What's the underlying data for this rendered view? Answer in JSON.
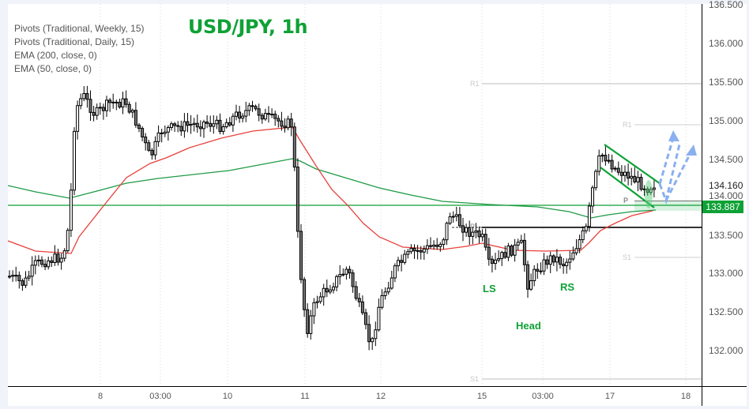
{
  "chart": {
    "title": "USD/JPY, 1h",
    "legend": [
      "Pivots (Traditional, Weekly, 15)",
      "Pivots (Traditional, Daily, 15)",
      "EMA (200, close, 0)",
      "EMA (50, close, 0)"
    ],
    "price_axis": {
      "ticks": [
        "136.500",
        "136.000",
        "135.500",
        "135.000",
        "134.500",
        "134.000",
        "133.500",
        "133.000",
        "132.500",
        "132.000"
      ],
      "last_price": "134.160",
      "badge_price": "133.887",
      "badge_color": "#0ea135"
    },
    "time_axis": {
      "ticks": [
        "8",
        "03:00",
        "10",
        "11",
        "12",
        "15",
        "03:00",
        "17",
        "18"
      ]
    },
    "pivot_labels": {
      "weekly_r1": "R1",
      "weekly_p": "P",
      "weekly_s1": "S1",
      "daily_r1": "R1",
      "daily_p": "P",
      "daily_s1": "S1"
    },
    "annotations": {
      "left_shoulder": "LS",
      "head": "Head",
      "right_shoulder": "RS"
    },
    "colors": {
      "ema50": "#e8413b",
      "ema200": "#1f9a46",
      "annotation": "#0ea135",
      "projection_arrows": "#8ab0f0",
      "pivot_lines": "#c8c8c8"
    }
  },
  "chart_data": {
    "type": "candlestick",
    "title": "USD/JPY, 1h",
    "symbol": "USD/JPY",
    "timeframe": "1h",
    "xlabel": "",
    "ylabel": "",
    "ylim": [
      131.6,
      136.55
    ],
    "categories": [
      "8",
      "03:00",
      "10",
      "11",
      "12",
      "15",
      "03:00",
      "17",
      "18"
    ],
    "indicators": [
      {
        "name": "EMA (200, close, 0)",
        "color": "#1f9a46"
      },
      {
        "name": "EMA (50, close, 0)",
        "color": "#e8413b"
      },
      {
        "name": "Pivots (Traditional, Weekly, 15)"
      },
      {
        "name": "Pivots (Traditional, Daily, 15)"
      }
    ],
    "approx_closes": [
      133.1,
      133.0,
      133.3,
      133.5,
      135.0,
      135.3,
      135.1,
      134.9,
      134.7,
      135.0,
      135.1,
      135.0,
      134.9,
      133.3,
      132.1,
      132.9,
      132.6,
      132.0,
      133.1,
      133.4,
      133.6,
      133.8,
      133.6,
      133.2,
      132.7,
      133.3,
      133.2,
      133.4,
      134.3,
      134.6,
      134.3,
      134.1,
      134.16
    ],
    "levels": {
      "weekly_r1": 135.5,
      "weekly_pivot": 133.6,
      "weekly_s1": 131.7,
      "daily_r1": 134.95,
      "daily_pivot": 133.93,
      "daily_s1": 133.2,
      "last_price": 134.16,
      "highlighted_level": 133.887
    },
    "pattern_annotations": [
      {
        "label": "LS",
        "approx_price": 132.85
      },
      {
        "label": "Head",
        "approx_price": 132.55
      },
      {
        "label": "RS",
        "approx_price": 132.95
      },
      {
        "label": "Bull flag / falling channel",
        "from": 134.65,
        "to": 133.85
      }
    ],
    "grid": true,
    "legend_position": "top-left"
  }
}
